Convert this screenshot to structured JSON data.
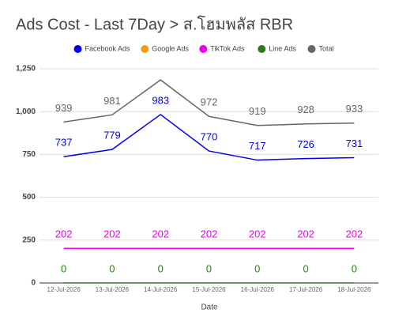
{
  "chart_data": {
    "type": "line",
    "title": "Ads Cost - Last 7Day > ส.โฮมพลัส RBR",
    "title_color": "#e8101a",
    "x_label": "Date",
    "categories": [
      "12-Jul-2026",
      "13-Jul-2026",
      "14-Jul-2026",
      "15-Jul-2026",
      "16-Jul-2026",
      "17-Jul-2026",
      "18-Jul-2026"
    ],
    "series": [
      {
        "name": "Facebook Ads",
        "color": "#0000ee",
        "values": [
          737,
          779,
          983,
          770,
          717,
          726,
          731
        ]
      },
      {
        "name": "Google Ads",
        "color": "#f39c12",
        "values": [
          null,
          null,
          null,
          null,
          null,
          null,
          null
        ]
      },
      {
        "name": "TikTok Ads",
        "color": "#ee00ee",
        "values": [
          202,
          202,
          202,
          202,
          202,
          202,
          202
        ]
      },
      {
        "name": "Line Ads",
        "color": "#2e7d1a",
        "values": [
          0,
          0,
          0,
          0,
          0,
          0,
          0
        ]
      },
      {
        "name": "Total",
        "color": "#666666",
        "values": [
          939,
          981,
          1185,
          972,
          919,
          928,
          933
        ],
        "value_labels": [
          "939",
          "981",
          null,
          "972",
          "919",
          "928",
          "933"
        ]
      }
    ],
    "ylim": [
      0,
      1250
    ],
    "yticks": [
      0,
      250,
      500,
      750,
      {
        "value": 1000,
        "label": "1,000"
      },
      {
        "value": 1250,
        "label": "1,250"
      }
    ],
    "grid": true,
    "legend": "top"
  }
}
